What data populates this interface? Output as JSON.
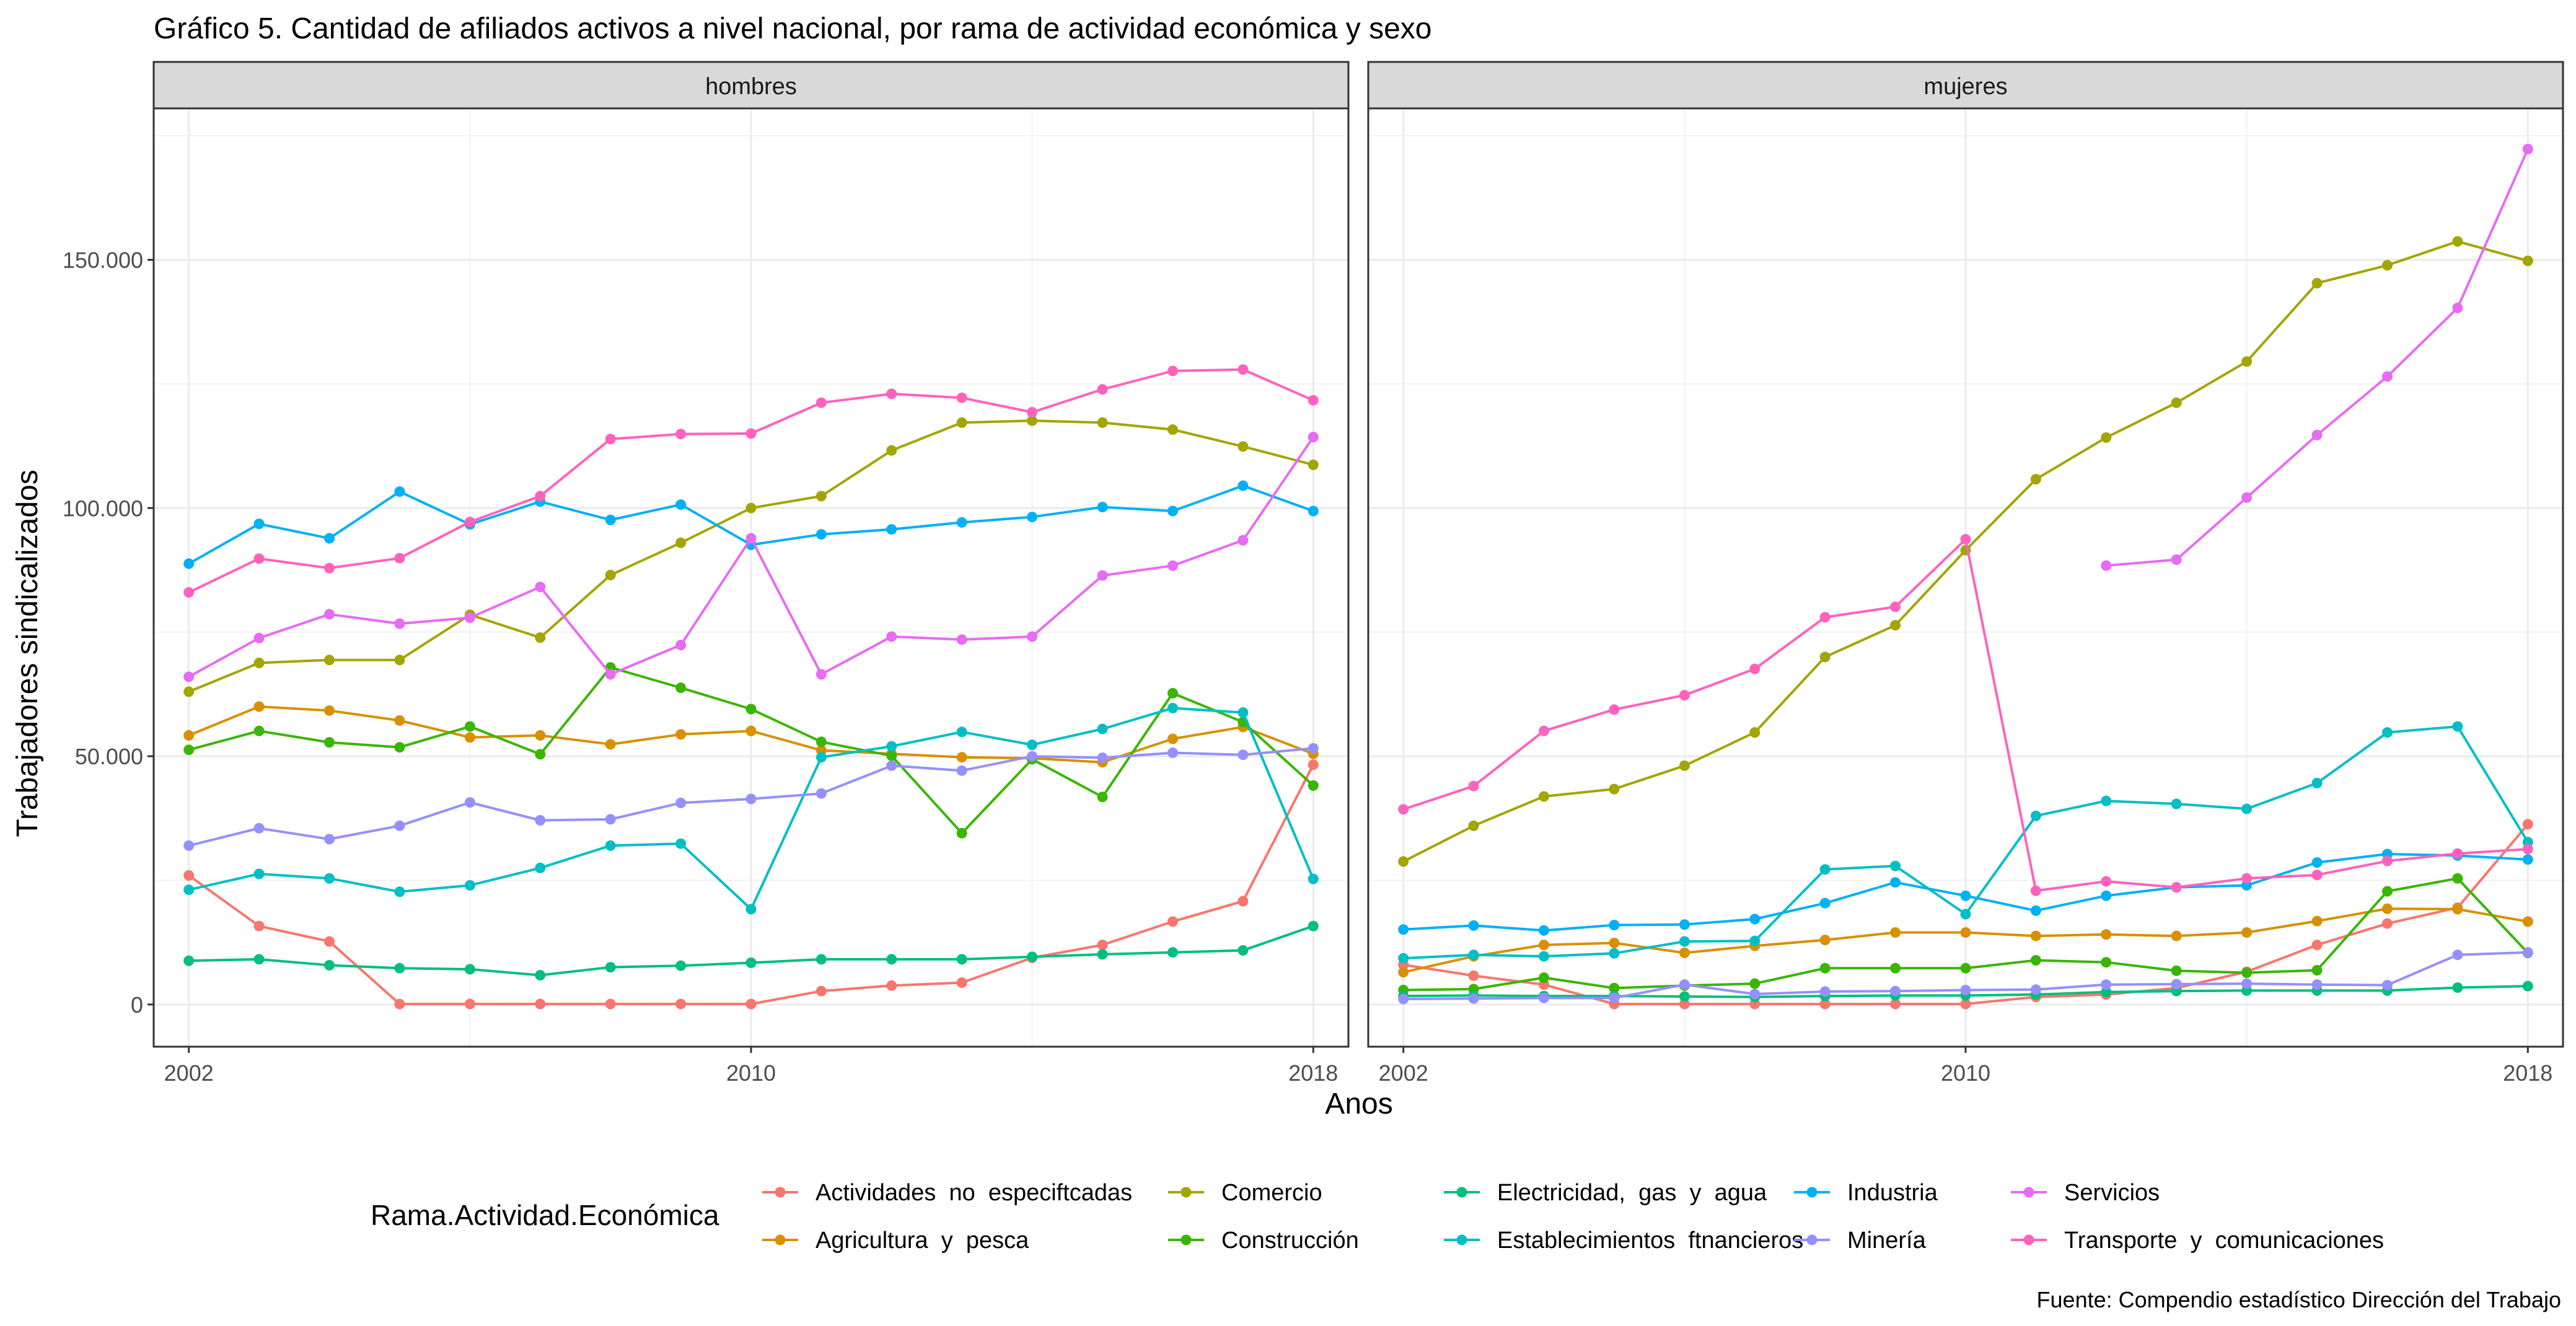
{
  "chart_data": {
    "type": "line",
    "title": "Gráfico 5. Cantidad de afiliados activos a nivel nacional, por rama de actividad económica y sexo",
    "xlabel": "Anos",
    "ylabel": "Trabajadores sindicalizados",
    "caption": "Fuente: Compendio estadístico Dirección del Trabajo",
    "legend_title": "Rama.Actividad.Económica",
    "legend_position": "bottom",
    "grid": true,
    "xlim": [
      2001.5,
      2018.5
    ],
    "ylim": [
      -8500,
      180500
    ],
    "x_ticks": [
      2002,
      2010,
      2018
    ],
    "x_tick_labels": [
      "2002",
      "2010",
      "2018"
    ],
    "y_ticks": [
      0,
      50000,
      100000,
      150000
    ],
    "y_tick_labels": [
      "0",
      "50.000",
      "100.000",
      "150.000"
    ],
    "x": [
      2002,
      2003,
      2004,
      2005,
      2006,
      2007,
      2008,
      2009,
      2010,
      2011,
      2012,
      2013,
      2014,
      2015,
      2016,
      2017,
      2018
    ],
    "legend": [
      {
        "name": "Actividades  no  especiftcadas",
        "color": "#F8766D"
      },
      {
        "name": "Agricultura  y  pesca",
        "color": "#D89000"
      },
      {
        "name": "Comercio",
        "color": "#A3A500"
      },
      {
        "name": "Construcción",
        "color": "#39B600"
      },
      {
        "name": "Electricidad,  gas  y  agua",
        "color": "#00BF7D"
      },
      {
        "name": "Establecimientos  ftnancieros",
        "color": "#00BFC4"
      },
      {
        "name": "Industria",
        "color": "#00B0F6"
      },
      {
        "name": "Minería",
        "color": "#9590FF"
      },
      {
        "name": "Servicios",
        "color": "#E76BF3"
      },
      {
        "name": "Transporte  y  comunicaciones",
        "color": "#FF62BC"
      }
    ],
    "panels": [
      {
        "label": "hombres",
        "series": [
          {
            "name": "Actividades  no  especiftcadas",
            "color": "#F8766D",
            "values": [
              26000,
              15800,
              12700,
              100,
              100,
              100,
              100,
              100,
              100,
              2700,
              3800,
              4400,
              9400,
              12000,
              16700,
              20800,
              48300
            ]
          },
          {
            "name": "Agricultura  y  pesca",
            "color": "#D89000",
            "values": [
              54200,
              60000,
              59200,
              57200,
              53800,
              54200,
              52400,
              54400,
              55100,
              51200,
              50500,
              49800,
              49600,
              48800,
              53500,
              55900,
              50500
            ]
          },
          {
            "name": "Comercio",
            "color": "#A3A500",
            "values": [
              63000,
              68800,
              69400,
              69400,
              78500,
              73900,
              86500,
              93000,
              100000,
              102400,
              111600,
              117200,
              117600,
              117200,
              115800,
              112400,
              108700
            ]
          },
          {
            "name": "Construcción",
            "color": "#39B600",
            "values": [
              51300,
              55100,
              52800,
              51800,
              56000,
              50400,
              67900,
              63800,
              59500,
              52900,
              50100,
              34500,
              49400,
              41800,
              62700,
              56900,
              44100
            ]
          },
          {
            "name": "Electricidad,  gas  y  agua",
            "color": "#00BF7D",
            "values": [
              8800,
              9100,
              7900,
              7300,
              7100,
              5900,
              7500,
              7800,
              8400,
              9100,
              9100,
              9100,
              9600,
              10100,
              10500,
              10900,
              15800
            ]
          },
          {
            "name": "Establecimientos  ftnancieros",
            "color": "#00BFC4",
            "values": [
              23100,
              26300,
              25400,
              22700,
              24000,
              27500,
              32000,
              32400,
              19200,
              49800,
              52000,
              54900,
              52300,
              55500,
              59700,
              58800,
              25300
            ]
          },
          {
            "name": "Industria",
            "color": "#00B0F6",
            "values": [
              88800,
              96800,
              93900,
              103300,
              96700,
              101300,
              97600,
              100700,
              92600,
              94700,
              95700,
              97100,
              98200,
              100200,
              99400,
              104500,
              99400
            ]
          },
          {
            "name": "Minería",
            "color": "#9590FF",
            "values": [
              32000,
              35500,
              33300,
              36000,
              40700,
              37100,
              37300,
              40600,
              41400,
              42500,
              48100,
              47100,
              50000,
              49700,
              50700,
              50300,
              51600
            ]
          },
          {
            "name": "Servicios",
            "color": "#E76BF3",
            "values": [
              66000,
              73800,
              78600,
              76700,
              77900,
              84100,
              66500,
              72400,
              93900,
              66500,
              74100,
              73500,
              74100,
              86400,
              88400,
              93500,
              114300
            ]
          },
          {
            "name": "Transporte  y  comunicaciones",
            "color": "#FF62BC",
            "values": [
              83000,
              89800,
              87900,
              89900,
              97200,
              102400,
              113900,
              114900,
              115000,
              121200,
              123000,
              122200,
              119300,
              123900,
              127600,
              127900,
              121700
            ]
          }
        ]
      },
      {
        "label": "mujeres",
        "series": [
          {
            "name": "Actividades  no  especiftcadas",
            "color": "#F8766D",
            "values": [
              8000,
              5800,
              4000,
              100,
              100,
              100,
              100,
              100,
              100,
              1500,
              2000,
              3300,
              6600,
              12000,
              16300,
              19500,
              36300
            ]
          },
          {
            "name": "Agricultura  y  pesca",
            "color": "#D89000",
            "values": [
              6500,
              9700,
              12000,
              12400,
              10400,
              11800,
              13000,
              14500,
              14500,
              13800,
              14100,
              13800,
              14500,
              16800,
              19300,
              19200,
              16700
            ]
          },
          {
            "name": "Comercio",
            "color": "#A3A500",
            "values": [
              28800,
              36000,
              41900,
              43400,
              48100,
              54800,
              70000,
              76400,
              91500,
              105800,
              114200,
              121200,
              129500,
              145300,
              148900,
              153700,
              149800
            ]
          },
          {
            "name": "Construcción",
            "color": "#39B600",
            "values": [
              2900,
              3100,
              5400,
              3300,
              3800,
              4200,
              7300,
              7300,
              7300,
              8900,
              8500,
              6800,
              6400,
              6900,
              22800,
              25400,
              10400
            ]
          },
          {
            "name": "Electricidad,  gas  y  agua",
            "color": "#00BF7D",
            "values": [
              1700,
              1800,
              1700,
              1700,
              1600,
              1500,
              1700,
              1800,
              1800,
              2000,
              2500,
              2700,
              2800,
              2800,
              2800,
              3400,
              3700
            ]
          },
          {
            "name": "Establecimientos  ftnancieros",
            "color": "#00BFC4",
            "values": [
              9300,
              10000,
              9700,
              10300,
              12700,
              12800,
              27200,
              27900,
              18200,
              38000,
              41000,
              40400,
              39400,
              44600,
              54800,
              56000,
              32700
            ]
          },
          {
            "name": "Industria",
            "color": "#00B0F6",
            "values": [
              15100,
              15900,
              14900,
              16000,
              16100,
              17200,
              20400,
              24600,
              21900,
              18900,
              21900,
              23600,
              24000,
              28600,
              30300,
              30000,
              29200
            ]
          },
          {
            "name": "Minería",
            "color": "#9590FF",
            "values": [
              1100,
              1200,
              1300,
              1300,
              4000,
              2100,
              2600,
              2700,
              2900,
              3000,
              4000,
              4100,
              4200,
              4000,
              3900,
              10000,
              10500
            ]
          },
          {
            "name": "Servicios",
            "color": "#E76BF3",
            "values": [
              null,
              null,
              null,
              null,
              null,
              null,
              null,
              null,
              null,
              null,
              88400,
              89600,
              102100,
              114700,
              126500,
              140300,
              172300
            ]
          },
          {
            "name": "Transporte  y  comunicaciones",
            "color": "#FF62BC",
            "values": [
              39300,
              44000,
              55100,
              59400,
              62300,
              67600,
              78000,
              80100,
              93700,
              22900,
              24800,
              23600,
              25400,
              26100,
              28900,
              30400,
              31300
            ]
          }
        ]
      }
    ]
  }
}
